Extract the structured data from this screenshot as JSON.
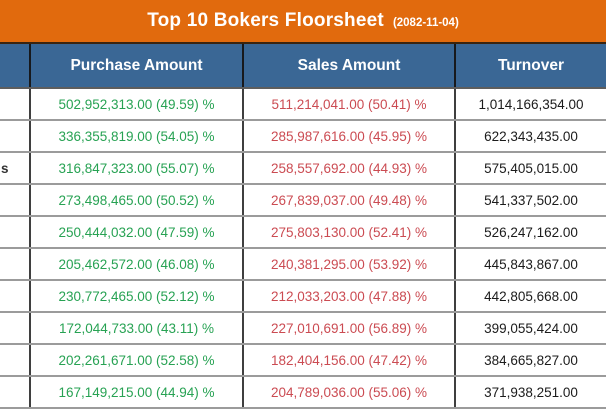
{
  "title": {
    "text": "Top 10 Bokers Floorsheet",
    "date": "(2082-11-04)"
  },
  "columns": {
    "purchase": "Purchase Amount",
    "sales": "Sales Amount",
    "turnover": "Turnover"
  },
  "colors": {
    "header_orange": "#e16a0d",
    "header_blue": "#3a6795",
    "purchase_green": "#27a253",
    "sales_red": "#cb4b52",
    "turnover_black": "#1b1b1b"
  },
  "rows": [
    {
      "broker": "",
      "purchase": "502,952,313.00 (49.59) %",
      "sales": "511,214,041.00 (50.41) %",
      "turnover": "1,014,166,354.00"
    },
    {
      "broker": "",
      "purchase": "336,355,819.00 (54.05) %",
      "sales": "285,987,616.00 (45.95) %",
      "turnover": "622,343,435.00"
    },
    {
      "broker": "s",
      "purchase": "316,847,323.00 (55.07) %",
      "sales": "258,557,692.00 (44.93) %",
      "turnover": "575,405,015.00"
    },
    {
      "broker": "",
      "purchase": "273,498,465.00 (50.52) %",
      "sales": "267,839,037.00 (49.48) %",
      "turnover": "541,337,502.00"
    },
    {
      "broker": "",
      "purchase": "250,444,032.00 (47.59) %",
      "sales": "275,803,130.00 (52.41) %",
      "turnover": "526,247,162.00"
    },
    {
      "broker": "",
      "purchase": "205,462,572.00 (46.08) %",
      "sales": "240,381,295.00 (53.92) %",
      "turnover": "445,843,867.00"
    },
    {
      "broker": "",
      "purchase": "230,772,465.00 (52.12) %",
      "sales": "212,033,203.00 (47.88) %",
      "turnover": "442,805,668.00"
    },
    {
      "broker": "",
      "purchase": "172,044,733.00 (43.11) %",
      "sales": "227,010,691.00 (56.89) %",
      "turnover": "399,055,424.00"
    },
    {
      "broker": "",
      "purchase": "202,261,671.00 (52.58) %",
      "sales": "182,404,156.00 (47.42) %",
      "turnover": "384,665,827.00"
    },
    {
      "broker": "",
      "purchase": "167,149,215.00 (44.94) %",
      "sales": "204,789,036.00 (55.06) %",
      "turnover": "371,938,251.00"
    }
  ],
  "chart_data": {
    "type": "table",
    "title": "Top 10 Bokers Floorsheet",
    "date": "2082-11-04",
    "columns": [
      "Purchase Amount",
      "Sales Amount",
      "Turnover"
    ],
    "records": [
      {
        "purchase_amount": 502952313.0,
        "purchase_pct": 49.59,
        "sales_amount": 511214041.0,
        "sales_pct": 50.41,
        "turnover": 1014166354.0
      },
      {
        "purchase_amount": 336355819.0,
        "purchase_pct": 54.05,
        "sales_amount": 285987616.0,
        "sales_pct": 45.95,
        "turnover": 622343435.0
      },
      {
        "purchase_amount": 316847323.0,
        "purchase_pct": 55.07,
        "sales_amount": 258557692.0,
        "sales_pct": 44.93,
        "turnover": 575405015.0
      },
      {
        "purchase_amount": 273498465.0,
        "purchase_pct": 50.52,
        "sales_amount": 267839037.0,
        "sales_pct": 49.48,
        "turnover": 541337502.0
      },
      {
        "purchase_amount": 250444032.0,
        "purchase_pct": 47.59,
        "sales_amount": 275803130.0,
        "sales_pct": 52.41,
        "turnover": 526247162.0
      },
      {
        "purchase_amount": 205462572.0,
        "purchase_pct": 46.08,
        "sales_amount": 240381295.0,
        "sales_pct": 53.92,
        "turnover": 445843867.0
      },
      {
        "purchase_amount": 230772465.0,
        "purchase_pct": 52.12,
        "sales_amount": 212033203.0,
        "sales_pct": 47.88,
        "turnover": 442805668.0
      },
      {
        "purchase_amount": 172044733.0,
        "purchase_pct": 43.11,
        "sales_amount": 227010691.0,
        "sales_pct": 56.89,
        "turnover": 399055424.0
      },
      {
        "purchase_amount": 202261671.0,
        "purchase_pct": 52.58,
        "sales_amount": 182404156.0,
        "sales_pct": 47.42,
        "turnover": 384665827.0
      },
      {
        "purchase_amount": 167149215.0,
        "purchase_pct": 44.94,
        "sales_amount": 204789036.0,
        "sales_pct": 55.06,
        "turnover": 371938251.0
      }
    ]
  }
}
